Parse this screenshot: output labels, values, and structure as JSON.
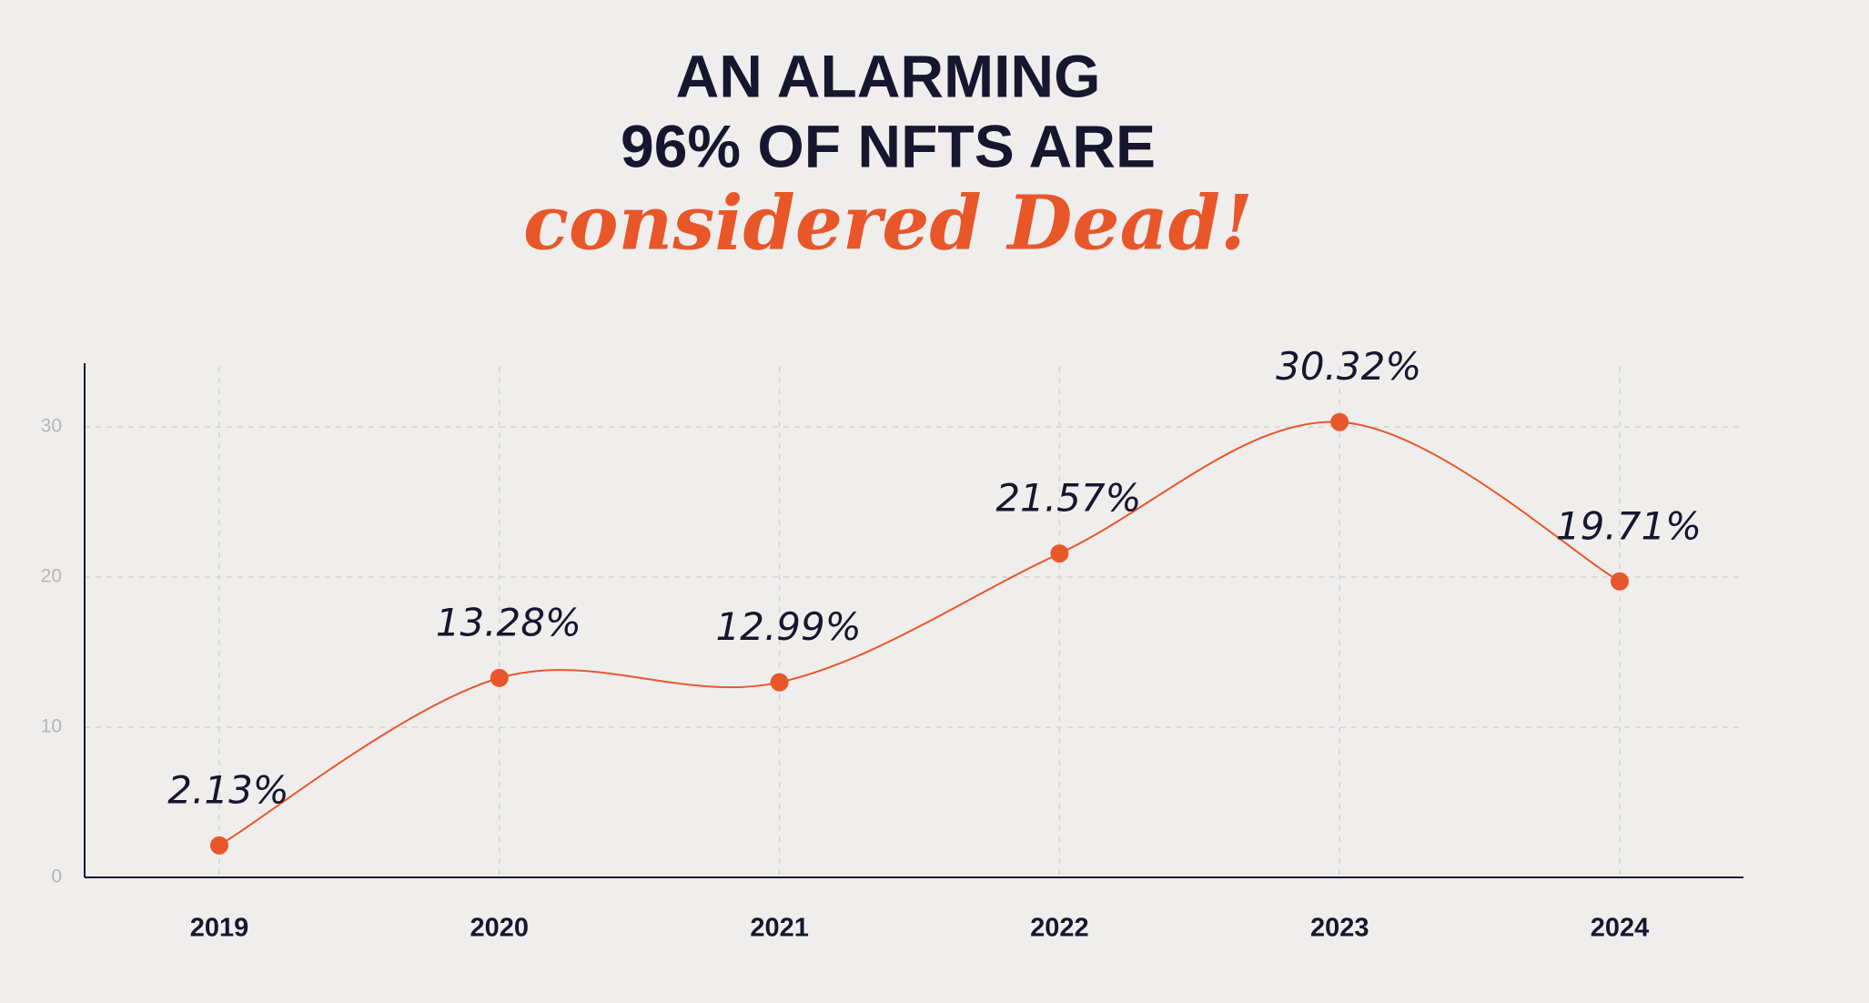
{
  "chart_data": {
    "type": "line",
    "title": [
      "AN ALARMING",
      "96% OF NFTS ARE"
    ],
    "subtitle": "considered Dead!",
    "categories": [
      "2019",
      "2020",
      "2021",
      "2022",
      "2023",
      "2024"
    ],
    "values": [
      2.13,
      13.28,
      12.99,
      21.57,
      30.32,
      19.71
    ],
    "value_labels": [
      "2.13%",
      "13.28%",
      "12.99%",
      "21.57%",
      "30.32%",
      "19.71%"
    ],
    "color": "#e8572a",
    "ylim": [
      0,
      34
    ],
    "yticks": [
      0,
      10,
      20,
      30
    ],
    "grid": true
  }
}
